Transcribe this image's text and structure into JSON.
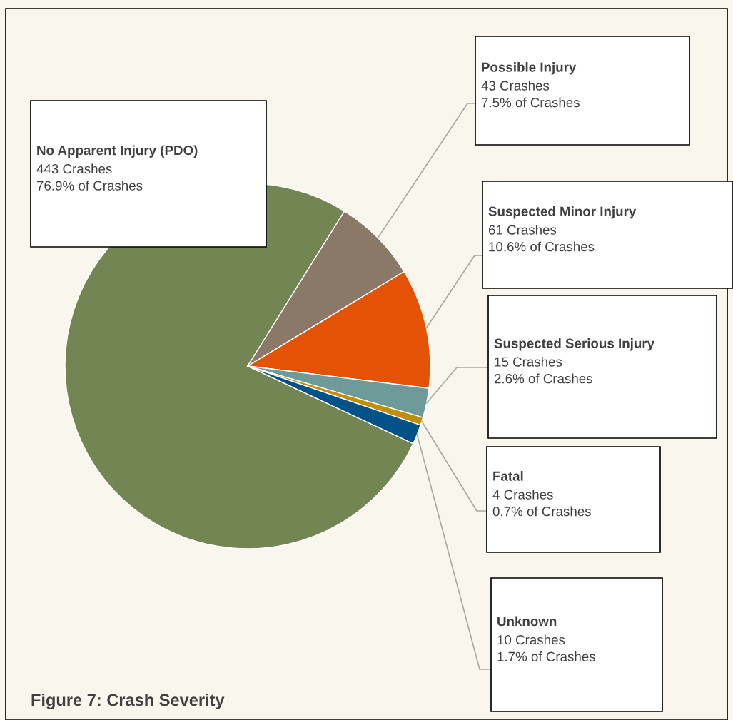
{
  "chart_data": {
    "type": "pie",
    "title": "Figure 7: Crash Severity",
    "categories": [
      "No Apparent Injury (PDO)",
      "Possible Injury",
      "Suspected Minor Injury",
      "Suspected Serious Injury",
      "Fatal",
      "Unknown"
    ],
    "values": [
      443,
      43,
      61,
      15,
      4,
      10
    ],
    "colors": [
      "#738553",
      "#8a7967",
      "#e35205",
      "#6f9a9a",
      "#c08e0a",
      "#005288"
    ],
    "value_labels": [
      "443 Crashes\n76.9% of Crashes",
      "43 Crashes\n7.5% of Crashes",
      "61 Crashes\n10.6% of Crashes",
      "15 Crashes\n2.6% of Crashes",
      "4 Crashes\n0.7% of Crashes",
      "10 Crashes\n1.7% of Crashes"
    ]
  }
}
